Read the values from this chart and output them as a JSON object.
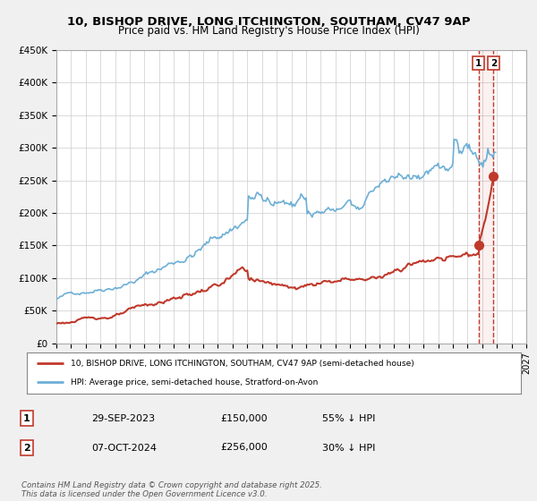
{
  "title1": "10, BISHOP DRIVE, LONG ITCHINGTON, SOUTHAM, CV47 9AP",
  "title2": "Price paid vs. HM Land Registry's House Price Index (HPI)",
  "bg_color": "#f0f0f0",
  "plot_bg_color": "#ffffff",
  "hpi_color": "#6dafd6",
  "price_color": "#c0392b",
  "dashed_line_color": "#c0392b",
  "ylim": [
    0,
    450000
  ],
  "xlim_start": 1995.0,
  "xlim_end": 2027.0,
  "sale1_x": 2023.748,
  "sale1_y": 150000,
  "sale2_x": 2024.768,
  "sale2_y": 256000,
  "legend_label_price": "10, BISHOP DRIVE, LONG ITCHINGTON, SOUTHAM, CV47 9AP (semi-detached house)",
  "legend_label_hpi": "HPI: Average price, semi-detached house, Stratford-on-Avon",
  "table_row1": [
    "1",
    "29-SEP-2023",
    "£150,000",
    "55% ↓ HPI"
  ],
  "table_row2": [
    "2",
    "07-OCT-2024",
    "£256,000",
    "30% ↓ HPI"
  ],
  "footer": "Contains HM Land Registry data © Crown copyright and database right 2025.\nThis data is licensed under the Open Government Licence v3.0.",
  "yticks": [
    0,
    50000,
    100000,
    150000,
    200000,
    250000,
    300000,
    350000,
    400000,
    450000
  ],
  "ytick_labels": [
    "£0",
    "£50K",
    "£100K",
    "£150K",
    "£200K",
    "£250K",
    "£300K",
    "£350K",
    "£400K",
    "£450K"
  ]
}
